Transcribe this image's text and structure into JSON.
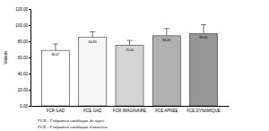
{
  "chart_data": {
    "type": "bar",
    "y_label": "Valeurs",
    "categories": [
      "FCR GAD",
      "FCE GAD",
      "FCR IMAGINAIRE",
      "FCE APNÉE",
      "FCE DYNAMIQUE"
    ],
    "values": [
      68.67,
      84.83,
      75.0,
      86.83,
      89.5
    ],
    "value_labels": [
      "68.67",
      "84.83",
      "75.00",
      "86.83",
      "89.50"
    ],
    "errors": [
      8,
      7,
      6,
      9,
      11
    ],
    "colors": [
      "#ffffff",
      "#f7f7f7",
      "#d4d4d4",
      "#b0b0b0",
      "#969696"
    ],
    "data_labels": true,
    "ylim": [
      0,
      120
    ],
    "yticks": [
      {
        "value": 0,
        "label": "0.00"
      },
      {
        "value": 20,
        "label": "20.00"
      },
      {
        "value": 40,
        "label": "40.00"
      },
      {
        "value": 60,
        "label": "60.00"
      },
      {
        "value": 80,
        "label": "80.00"
      },
      {
        "value": 100,
        "label": "100.00"
      },
      {
        "value": 120,
        "label": "120.00"
      }
    ],
    "annotations": [
      "FCR : Fréquence cardiaque de repos",
      "FCE : Fréquence cardiaque d'exercice"
    ]
  }
}
